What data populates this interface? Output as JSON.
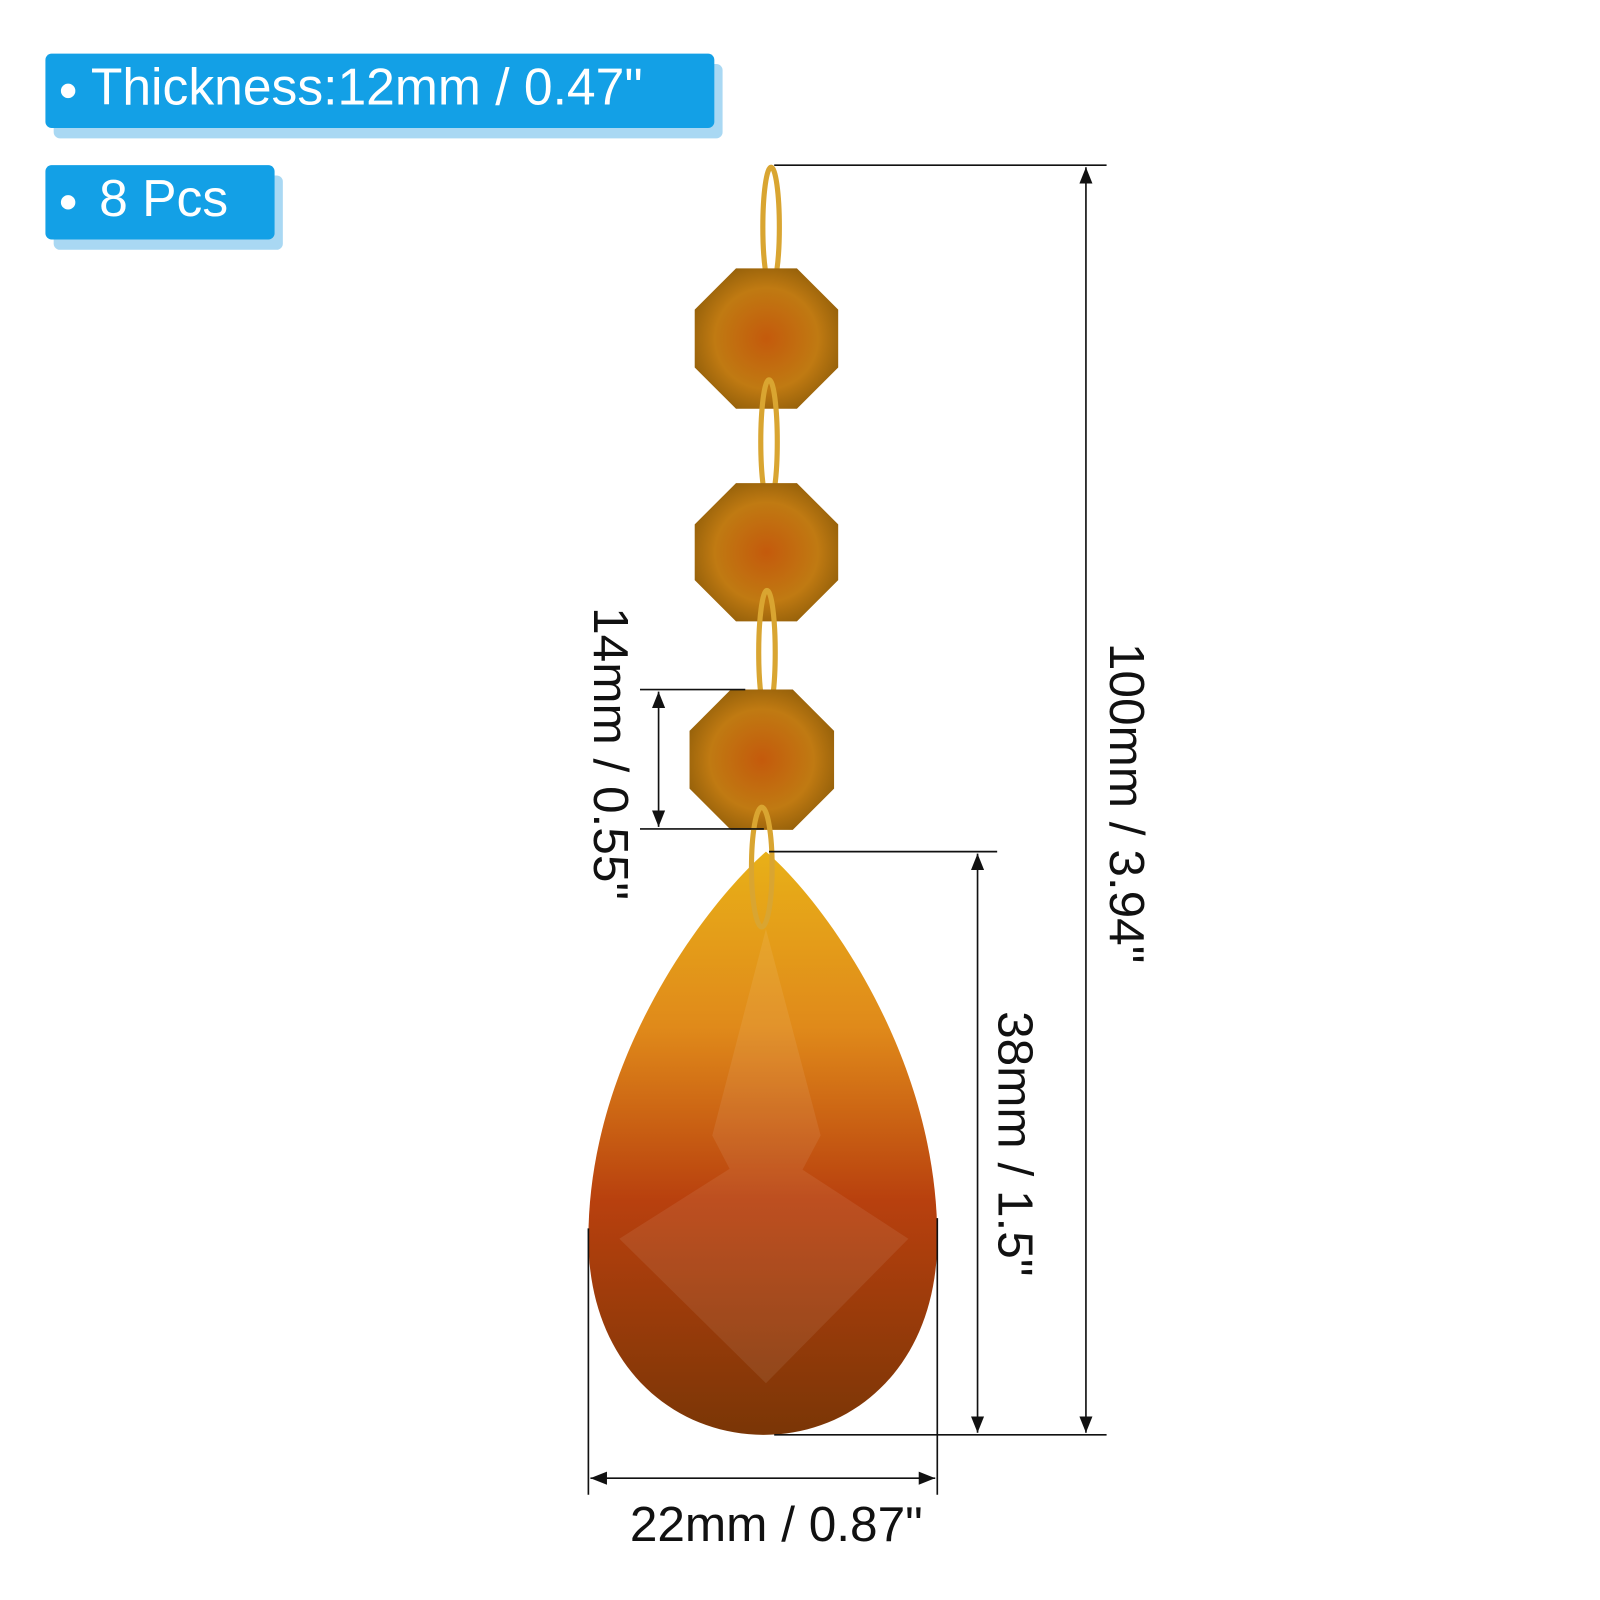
{
  "badges": [
    "Thickness:12mm / 0.47\"",
    "8 Pcs"
  ],
  "dimensions": {
    "total_length": "100mm / 3.94\"",
    "bead_height": "14mm / 0.55\"",
    "drop_length": "38mm / 1.5\"",
    "drop_width": "22mm / 0.87\""
  }
}
